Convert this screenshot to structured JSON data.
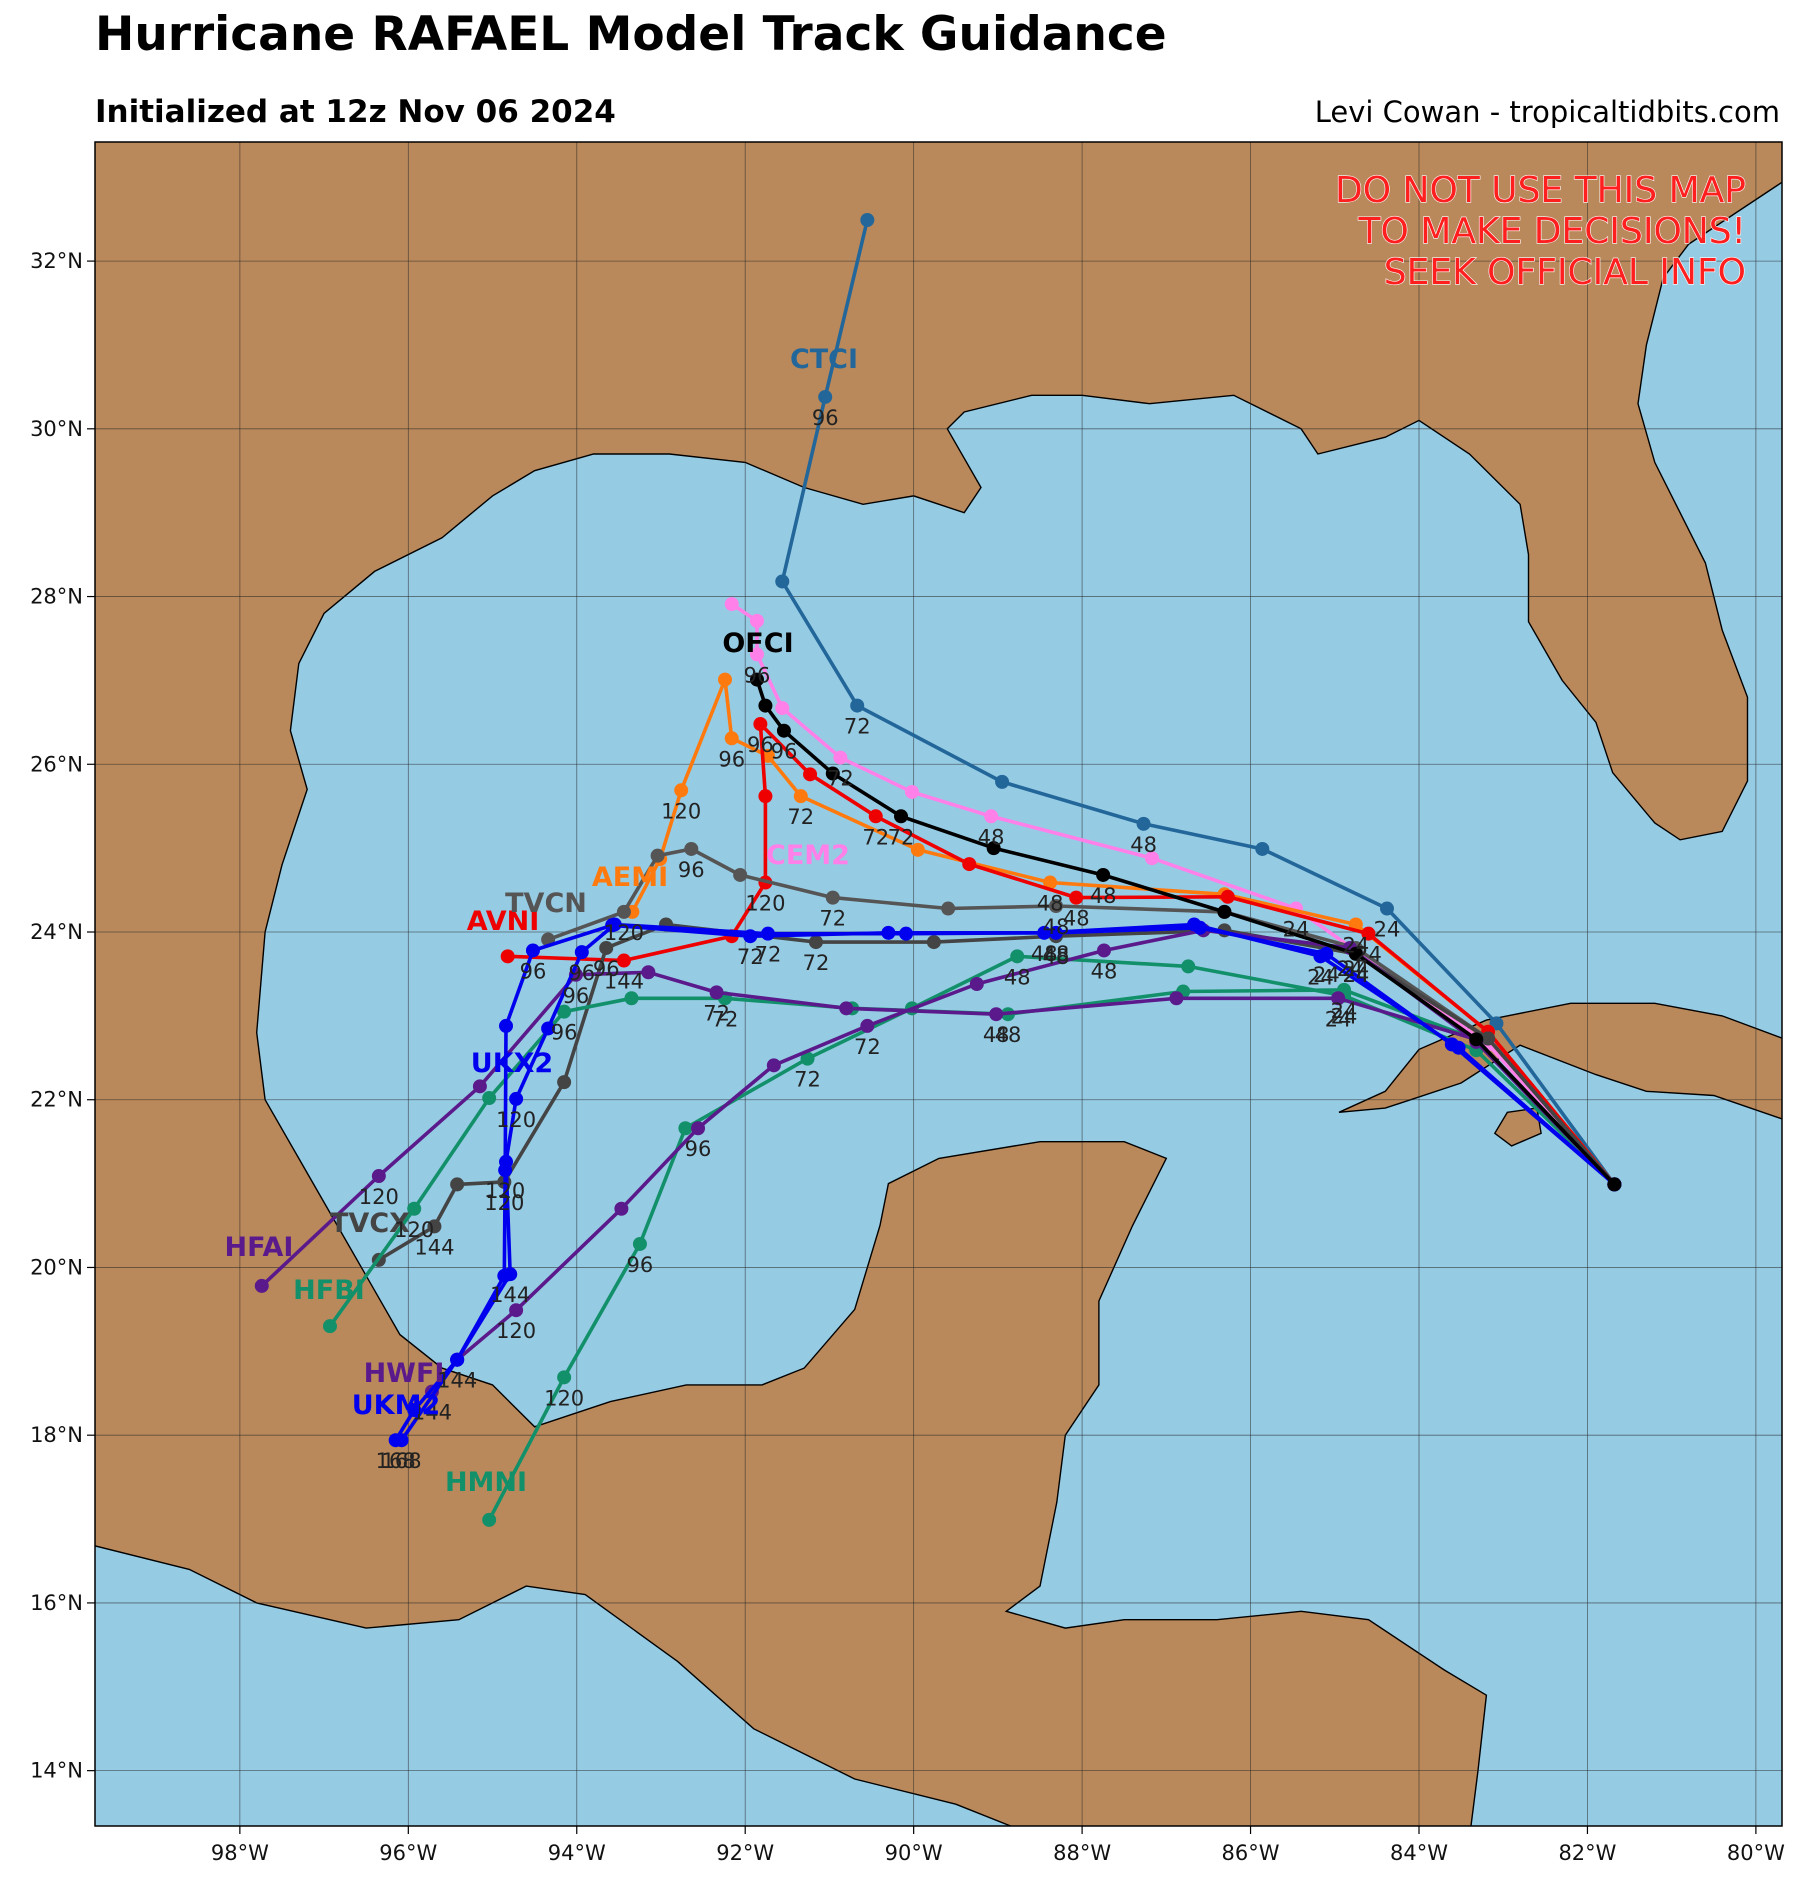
{
  "chart_data": {
    "type": "track",
    "title": "Hurricane RAFAEL Model Track Guidance",
    "subtitle": "Initialized at 12z Nov 06 2024",
    "credit": "Levi Cowan - tropicaltidbits.com",
    "warning": [
      "DO NOT USE THIS MAP",
      "TO MAKE DECISIONS!",
      "SEEK OFFICIAL INFO"
    ],
    "xlim": [
      -99.72,
      -79.69
    ],
    "ylim": [
      13.34,
      33.42
    ],
    "xticks": [
      {
        "value": -98,
        "label": "98°W"
      },
      {
        "value": -96,
        "label": "96°W"
      },
      {
        "value": -94,
        "label": "94°W"
      },
      {
        "value": -92,
        "label": "92°W"
      },
      {
        "value": -90,
        "label": "90°W"
      },
      {
        "value": -88,
        "label": "88°W"
      },
      {
        "value": -86,
        "label": "86°W"
      },
      {
        "value": -84,
        "label": "84°W"
      },
      {
        "value": -82,
        "label": "82°W"
      },
      {
        "value": -80,
        "label": "80°W"
      }
    ],
    "yticks": [
      {
        "value": 14,
        "label": "14°N"
      },
      {
        "value": 16,
        "label": "16°N"
      },
      {
        "value": 18,
        "label": "18°N"
      },
      {
        "value": 20,
        "label": "20°N"
      },
      {
        "value": 22,
        "label": "22°N"
      },
      {
        "value": 24,
        "label": "24°N"
      },
      {
        "value": 26,
        "label": "26°N"
      },
      {
        "value": 28,
        "label": "28°N"
      },
      {
        "value": 30,
        "label": "30°N"
      },
      {
        "value": 32,
        "label": "32°N"
      }
    ],
    "grid": true,
    "series": [
      {
        "name": "CTCI",
        "color": "#23679a",
        "lon": [
          -81.68,
          -83.08,
          -84.38,
          -85.86,
          -87.27,
          -88.95,
          -90.67,
          -91.56,
          -91.05,
          -90.55
        ],
        "lat": [
          20.99,
          22.91,
          24.28,
          24.99,
          25.29,
          25.79,
          26.7,
          28.18,
          30.38,
          32.49
        ],
        "hours": [
          null,
          null,
          24,
          null,
          48,
          null,
          72,
          null,
          96,
          null
        ]
      },
      {
        "name": "CEM2",
        "color": "#ff80e8",
        "lon": [
          -81.68,
          -83.18,
          -85.46,
          -87.17,
          -89.08,
          -90.02,
          -90.87,
          -91.56,
          -91.86,
          -91.86,
          -92.16
        ],
        "lat": [
          20.99,
          22.66,
          24.28,
          24.88,
          25.38,
          25.67,
          26.08,
          26.67,
          27.31,
          27.71,
          27.91
        ],
        "hours": [
          null,
          null,
          24,
          null,
          48,
          null,
          72,
          null,
          96,
          null,
          null
        ]
      },
      {
        "name": "AEMI",
        "color": "#ff7a0e",
        "lon": [
          -81.68,
          -83.18,
          -84.75,
          -86.31,
          -88.38,
          -89.95,
          -91.34,
          -91.73,
          -92.16,
          -92.24,
          -92.76,
          -93.01,
          -93.34
        ],
        "lat": [
          20.99,
          22.81,
          24.09,
          24.45,
          24.59,
          24.98,
          25.62,
          26.1,
          26.31,
          27.01,
          25.69,
          24.87,
          24.24
        ],
        "hours": [
          null,
          null,
          24,
          null,
          48,
          null,
          72,
          null,
          96,
          null,
          120,
          null,
          null
        ]
      },
      {
        "name": "AVNI",
        "color": "#ee0000",
        "lon": [
          -81.68,
          -83.18,
          -84.6,
          -86.27,
          -88.07,
          -89.34,
          -90.45,
          -91.23,
          -91.82,
          -91.76,
          -91.76,
          -92.16,
          -93.44,
          -94.82
        ],
        "lat": [
          20.99,
          22.81,
          23.98,
          24.42,
          24.41,
          24.81,
          25.38,
          25.88,
          26.48,
          25.62,
          24.59,
          23.95,
          23.66,
          23.71
        ],
        "hours": [
          null,
          null,
          24,
          null,
          48,
          null,
          72,
          null,
          96,
          null,
          120,
          null,
          144,
          null
        ]
      },
      {
        "name": "TVCN",
        "color": "#555555",
        "lon": [
          -81.68,
          -83.18,
          -84.75,
          -86.31,
          -88.31,
          -89.59,
          -90.96,
          -92.06,
          -92.64,
          -93.04,
          -93.44,
          -94.34
        ],
        "lat": [
          20.99,
          22.73,
          23.81,
          24.24,
          24.31,
          24.28,
          24.41,
          24.68,
          24.99,
          24.91,
          24.24,
          23.91
        ],
        "hours": [
          null,
          null,
          24,
          null,
          48,
          null,
          72,
          null,
          96,
          null,
          120,
          null
        ]
      },
      {
        "name": "TVCX",
        "color": "#444444",
        "lon": [
          -81.68,
          -83.18,
          -84.75,
          -86.31,
          -88.31,
          -89.76,
          -91.16,
          -92.94,
          -93.65,
          -94.15,
          -94.86,
          -95.42,
          -95.69,
          -96.35
        ],
        "lat": [
          20.99,
          22.73,
          23.74,
          24.02,
          23.95,
          23.88,
          23.88,
          24.09,
          23.81,
          22.21,
          21.02,
          20.99,
          20.49,
          20.09
        ],
        "hours": [
          null,
          null,
          24,
          null,
          48,
          null,
          72,
          null,
          96,
          null,
          120,
          null,
          144,
          null
        ]
      },
      {
        "name": "HMNI",
        "color": "#12906a",
        "lon": [
          -81.68,
          -83.32,
          -84.89,
          -86.74,
          -88.77,
          -90.02,
          -91.26,
          -92.71,
          -93.25,
          -94.15,
          -95.04
        ],
        "lat": [
          20.99,
          22.59,
          23.24,
          23.59,
          23.71,
          23.09,
          22.49,
          21.66,
          20.28,
          18.69,
          16.99
        ],
        "hours": [
          null,
          null,
          24,
          null,
          48,
          null,
          72,
          null,
          96,
          120,
          null
        ]
      },
      {
        "name": "HFBI",
        "color": "#12906a",
        "lon": [
          -81.68,
          -83.32,
          -84.89,
          -86.8,
          -88.88,
          -90.73,
          -92.24,
          -93.35,
          -94.15,
          -95.04,
          -95.93,
          -96.93
        ],
        "lat": [
          20.99,
          22.72,
          23.31,
          23.29,
          23.02,
          23.09,
          23.21,
          23.21,
          23.05,
          22.02,
          20.7,
          19.3
        ],
        "hours": [
          null,
          null,
          24,
          null,
          48,
          null,
          72,
          null,
          96,
          null,
          120,
          null
        ]
      },
      {
        "name": "HFAI",
        "color": "#5b1a8b",
        "lon": [
          -81.68,
          -83.32,
          -84.96,
          -86.88,
          -89.02,
          -90.8,
          -92.34,
          -93.15,
          -94.01,
          -95.15,
          -96.35,
          -97.74
        ],
        "lat": [
          20.99,
          22.72,
          23.21,
          23.21,
          23.02,
          23.09,
          23.28,
          23.52,
          23.49,
          22.16,
          21.09,
          19.78
        ],
        "hours": [
          null,
          null,
          24,
          null,
          48,
          null,
          72,
          null,
          96,
          null,
          120,
          null
        ]
      },
      {
        "name": "HWFI",
        "color": "#5b1a8b",
        "lon": [
          -81.68,
          -83.32,
          -84.82,
          -86.56,
          -87.74,
          -89.25,
          -90.55,
          -91.66,
          -92.56,
          -93.47,
          -94.72,
          -95.42,
          -95.72
        ],
        "lat": [
          20.99,
          22.69,
          23.81,
          24.02,
          23.78,
          23.38,
          22.88,
          22.41,
          21.66,
          20.7,
          19.49,
          18.9,
          18.52
        ],
        "hours": [
          null,
          null,
          24,
          null,
          48,
          null,
          72,
          null,
          96,
          null,
          120,
          null,
          144
        ]
      },
      {
        "name": "UKX2",
        "color": "#0000ee",
        "lon": [
          -81.68,
          -83.53,
          -85.17,
          -86.67,
          -88.45,
          -90.09,
          -91.73,
          -93.55,
          -93.94,
          -94.34,
          -94.72,
          -94.84,
          -94.79,
          -95.42,
          -96.08
        ],
        "lat": [
          20.99,
          22.62,
          23.71,
          24.09,
          23.99,
          23.98,
          23.98,
          24.09,
          23.76,
          22.85,
          22.01,
          21.26,
          19.92,
          18.9,
          17.94
        ],
        "hours": [
          null,
          null,
          24,
          null,
          48,
          null,
          72,
          null,
          96,
          null,
          120,
          null,
          144,
          null,
          168
        ]
      },
      {
        "name": "UKM2",
        "color": "#0000ee",
        "lon": [
          -81.68,
          -83.61,
          -85.1,
          -86.6,
          -88.31,
          -90.3,
          -91.94,
          -93.58,
          -94.52,
          -94.84,
          -94.85,
          -94.86,
          -95.42,
          -95.93,
          -96.15
        ],
        "lat": [
          20.99,
          22.66,
          23.74,
          24.05,
          23.99,
          23.99,
          23.95,
          24.08,
          23.78,
          22.88,
          21.16,
          19.9,
          18.9,
          18.3,
          17.94
        ],
        "hours": [
          null,
          null,
          24,
          null,
          48,
          null,
          72,
          null,
          96,
          null,
          120,
          null,
          144,
          null,
          168
        ]
      },
      {
        "name": "OFCI",
        "color": "#000000",
        "lon": [
          -81.68,
          -83.32,
          -84.75,
          -86.31,
          -87.75,
          -89.05,
          -90.15,
          -90.96,
          -91.54,
          -91.76,
          -91.86
        ],
        "lat": [
          20.99,
          22.72,
          23.74,
          24.24,
          24.68,
          25.0,
          25.38,
          25.89,
          26.4,
          26.7,
          27.01
        ],
        "hours": [
          null,
          null,
          24,
          null,
          48,
          null,
          72,
          null,
          96,
          null,
          null
        ]
      }
    ]
  }
}
